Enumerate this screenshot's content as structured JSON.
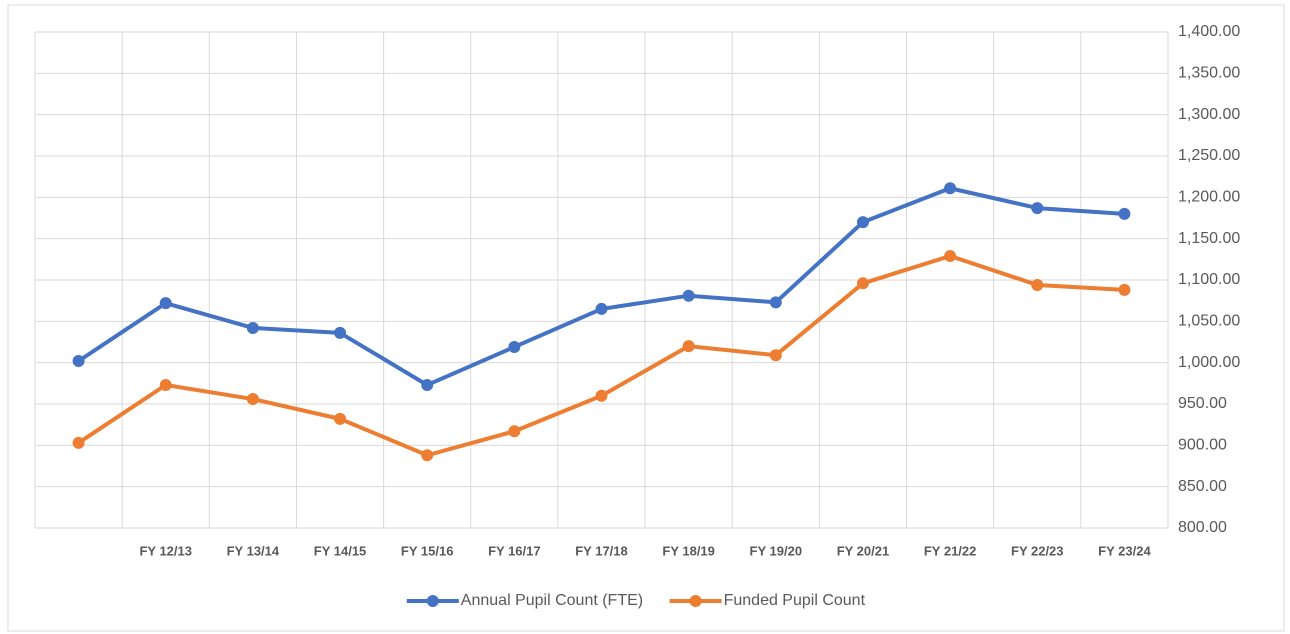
{
  "chart_data": {
    "type": "line",
    "categories": [
      null,
      "FY 12/13",
      "FY 13/14",
      "FY 14/15",
      "FY 15/16",
      "FY 16/17",
      "FY 17/18",
      "FY 18/19",
      "FY 19/20",
      "FY 20/21",
      "FY 21/22",
      "FY 22/23",
      "FY 23/24"
    ],
    "series": [
      {
        "name": "Annual Pupil Count (FTE)",
        "color": "#4472c4",
        "values": [
          1002,
          1072,
          1042,
          1036,
          973,
          1019,
          1065,
          1081,
          1073,
          1170,
          1211,
          1187,
          1180
        ]
      },
      {
        "name": "Funded Pupil Count",
        "color": "#ed7d31",
        "values": [
          903,
          973,
          956,
          932,
          888,
          917,
          960,
          1020,
          1009,
          1096,
          1129,
          1094,
          1088
        ]
      }
    ],
    "ylim": [
      800,
      1400
    ],
    "yticks": [
      {
        "value": 800,
        "label": "800.00"
      },
      {
        "value": 850,
        "label": "850.00"
      },
      {
        "value": 900,
        "label": "900.00"
      },
      {
        "value": 950,
        "label": "950.00"
      },
      {
        "value": 1000,
        "label": "1,000.00"
      },
      {
        "value": 1050,
        "label": "1,050.00"
      },
      {
        "value": 1100,
        "label": "1,100.00"
      },
      {
        "value": 1150,
        "label": "1,150.00"
      },
      {
        "value": 1200,
        "label": "1,200.00"
      },
      {
        "value": 1250,
        "label": "1,250.00"
      },
      {
        "value": 1300,
        "label": "1,300.00"
      },
      {
        "value": 1350,
        "label": "1,350.00"
      },
      {
        "value": 1400,
        "label": "1,400.00"
      }
    ],
    "grid": true,
    "y_axis_side": "right",
    "legend": "bottom"
  }
}
